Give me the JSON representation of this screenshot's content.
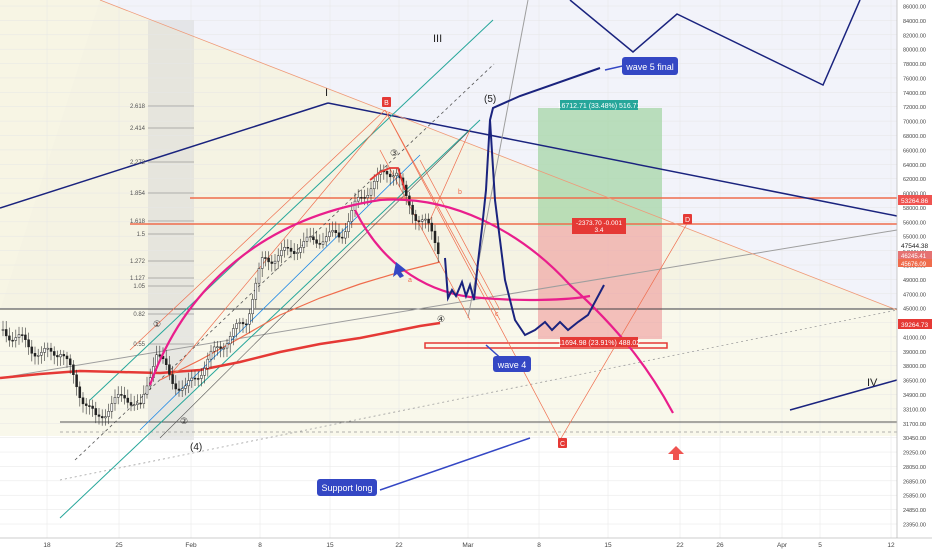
{
  "chart_data": {
    "type": "candlestick",
    "title": "",
    "xlabel": "",
    "ylabel": "",
    "grid": true,
    "ylim": [
      22000,
      86500
    ],
    "x_ticks": [
      "18",
      "25",
      "Feb",
      "8",
      "15",
      "22",
      "Mar",
      "8",
      "15",
      "22",
      "26",
      "Apr",
      "5",
      "12"
    ],
    "y_ticks": [
      "86000.00",
      "84000.00",
      "82000.00",
      "80000.00",
      "78000.00",
      "76000.00",
      "74000.00",
      "72000.00",
      "70000.00",
      "68000.00",
      "66000.00",
      "64000.00",
      "62000.00",
      "60000.00",
      "58000.00",
      "56000.00",
      "55000.00",
      "53000.00",
      "51000.00",
      "49000.00",
      "47000.00",
      "45000.00",
      "43000.00",
      "41000.00",
      "39000.00",
      "38000.00",
      "36500.00",
      "34900.00",
      "33100.00",
      "31700.00",
      "30450.00",
      "29250.00",
      "28050.00",
      "26850.00",
      "25850.00",
      "24850.00",
      "23950.00"
    ],
    "fib_levels": [
      "2.618",
      "2.414",
      "2.272",
      "1.854",
      "1.618",
      "1.5",
      "1.272",
      "1.127",
      "1.05",
      "0.82",
      "0.55"
    ],
    "price_labels": {
      "resistance": "53264.86",
      "current": "47544.38",
      "small_1": "46245.41",
      "small_2": "45676.09",
      "support": "39264.73"
    },
    "position_labels": {
      "profit": "16712.71 (33.48%) 516.71",
      "entry": "-2373.70 -0.001",
      "entry_ratio": "3.4",
      "stop": "11694.98 (23.91%) 488.02"
    },
    "wave_labels": {
      "w1": "I",
      "w3": "III",
      "w4": "IV",
      "w5": "(5)",
      "w4b": "(4)",
      "sub1": "①",
      "sub2": "②",
      "sub3": "③",
      "sub4": "④",
      "B": "B",
      "C": "C",
      "D": "D",
      "a": "a",
      "b": "b",
      "c": "c"
    },
    "callouts": {
      "wave5": "wave 5 final",
      "wave4": "wave 4",
      "support": "Support long"
    },
    "colors": {
      "up": "#26a69a",
      "down": "#ef5350",
      "magenta": "#e91e8c",
      "navy": "#1a237e",
      "callout": "#3447c4"
    }
  }
}
